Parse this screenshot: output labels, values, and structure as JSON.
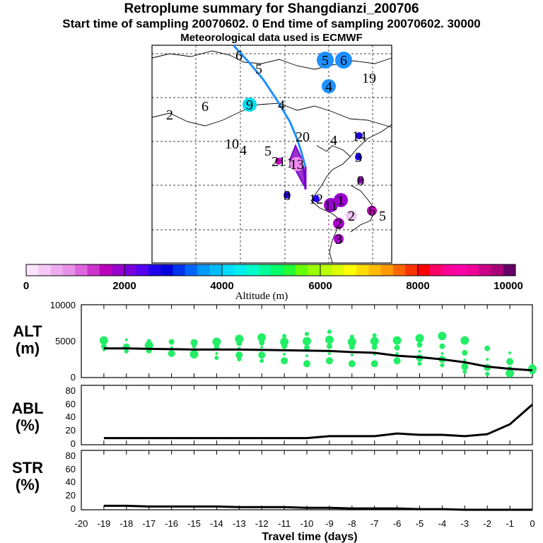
{
  "header": {
    "title": "Retroplume summary for Shangdianzi_200706",
    "sampling": "Start time of sampling 20070602.    0     End time of sampling 20070602. 30000",
    "met": "Meteorological data used is ECMWF"
  },
  "colorbar": {
    "label": "Altitude (m)",
    "ticks": [
      "0",
      "2000",
      "4000",
      "6000",
      "8000",
      "10000"
    ],
    "colors": [
      "#fbe4fb",
      "#f5c8f5",
      "#eeaaee",
      "#e890e8",
      "#dd66dd",
      "#cc33cc",
      "#bb00bb",
      "#9900cc",
      "#7700dd",
      "#5500ee",
      "#2200ee",
      "#0000dd",
      "#0033ee",
      "#0066ff",
      "#0099ff",
      "#00bbff",
      "#00ddff",
      "#00eeee",
      "#00ffcc",
      "#00ff99",
      "#00ff66",
      "#22ff33",
      "#66ff00",
      "#99ff00",
      "#bbff00",
      "#ddff00",
      "#ffff00",
      "#ffdd00",
      "#ffbb00",
      "#ff9900",
      "#ff6600",
      "#ff3300",
      "#ff0000",
      "#ff0066",
      "#ff0099",
      "#ff00aa",
      "#ee0099",
      "#cc0088",
      "#aa0077",
      "#660066"
    ]
  },
  "map": {
    "labels": [
      {
        "text": "6",
        "lon_deg": 0,
        "color": "#1e90ff"
      },
      {
        "text": "5",
        "color": "#1e90ff"
      },
      {
        "text": "5",
        "color": "#1e90ff"
      },
      {
        "text": "6",
        "color": "#1e90ff"
      },
      {
        "text": "4",
        "color": "#1e90ff"
      },
      {
        "text": "19",
        "color": "#00ddff"
      },
      {
        "text": "2",
        "color": "#00ddcc"
      },
      {
        "text": "6",
        "color": "#00ddcc"
      },
      {
        "text": "9",
        "color": "#00ddee"
      },
      {
        "text": "4",
        "color": "#1e90ff"
      },
      {
        "text": "10",
        "color": "#1e90ff"
      },
      {
        "text": "4",
        "color": "#1e90ff"
      },
      {
        "text": "5",
        "color": "#1e90ff"
      },
      {
        "text": "20",
        "color": "#aa00cc"
      },
      {
        "text": "14",
        "color": "#2200ee"
      },
      {
        "text": "4",
        "color": "#9900cc"
      },
      {
        "text": "3",
        "color": "#2200ee"
      },
      {
        "text": "21",
        "color": "#bb00bb"
      },
      {
        "text": "1",
        "color": "#aa00cc"
      },
      {
        "text": "13",
        "color": "#ee88ee"
      },
      {
        "text": "8",
        "color": "#9900cc"
      },
      {
        "text": "8",
        "color": "#2200ee"
      },
      {
        "text": "12",
        "color": "#2200ee"
      },
      {
        "text": "11",
        "color": "#9900cc"
      },
      {
        "text": "1",
        "color": "#9900cc"
      },
      {
        "text": "6",
        "color": "#bb00bb"
      },
      {
        "text": "5",
        "color": "#cc33cc"
      },
      {
        "text": "2",
        "color": "#f0c8f0"
      },
      {
        "text": "2",
        "color": "#aa00cc"
      },
      {
        "text": "3",
        "color": "#aa00cc"
      }
    ]
  },
  "panels": {
    "alt": {
      "label1": "ALT",
      "label2": "(m)",
      "yticks": [
        "10000",
        "5000",
        "0"
      ]
    },
    "abl": {
      "label1": "ABL",
      "label2": "(%)",
      "yticks": [
        "80",
        "60",
        "40",
        "20",
        "0"
      ]
    },
    "str": {
      "label1": "STR",
      "label2": "(%)",
      "yticks": [
        "80",
        "60",
        "40",
        "20",
        "0"
      ]
    }
  },
  "xaxis": {
    "title": "Travel time (days)",
    "ticks": [
      "-20",
      "-19",
      "-18",
      "-17",
      "-16",
      "-15",
      "-14",
      "-13",
      "-12",
      "-11",
      "-10",
      "-9",
      "-8",
      "-7",
      "-6",
      "-5",
      "-4",
      "-3",
      "-2",
      "-1",
      "0"
    ]
  },
  "chart_data": [
    {
      "type": "line",
      "title": "ALT (m)",
      "xlabel": "Travel time (days)",
      "ylabel": "Altitude (m)",
      "xlim": [
        -20,
        0
      ],
      "ylim": [
        0,
        10000
      ],
      "series": [
        {
          "name": "mean altitude",
          "x": [
            -19,
            -18,
            -17,
            -16,
            -15,
            -14,
            -13,
            -12,
            -11,
            -10,
            -9,
            -8,
            -7,
            -6,
            -5,
            -4,
            -3,
            -2,
            -1,
            0
          ],
          "values": [
            4000,
            4000,
            3950,
            3900,
            3850,
            3850,
            3850,
            3800,
            3750,
            3700,
            3650,
            3500,
            3400,
            3000,
            2800,
            2500,
            2100,
            1500,
            1200,
            1000
          ]
        },
        {
          "name": "cluster altitudes",
          "points": [
            [
              -19,
              3800
            ],
            [
              -19,
              4300
            ],
            [
              -19,
              5100
            ],
            [
              -18,
              3600
            ],
            [
              -18,
              4200
            ],
            [
              -18,
              5200
            ],
            [
              -17,
              3700
            ],
            [
              -17,
              4400
            ],
            [
              -17,
              5000
            ],
            [
              -16,
              3300
            ],
            [
              -16,
              4100
            ],
            [
              -16,
              4900
            ],
            [
              -15,
              3200
            ],
            [
              -15,
              4300
            ],
            [
              -15,
              4800
            ],
            [
              -14,
              3300
            ],
            [
              -14,
              4100
            ],
            [
              -14,
              4900
            ],
            [
              -14,
              2700
            ],
            [
              -13,
              3100
            ],
            [
              -13,
              4000
            ],
            [
              -13,
              4700
            ],
            [
              -13,
              5300
            ],
            [
              -13,
              2500
            ],
            [
              -12,
              3100
            ],
            [
              -12,
              4200
            ],
            [
              -12,
              4800
            ],
            [
              -12,
              5500
            ],
            [
              -12,
              2300
            ],
            [
              -11,
              2300
            ],
            [
              -11,
              3200
            ],
            [
              -11,
              4300
            ],
            [
              -11,
              4900
            ],
            [
              -11,
              5700
            ],
            [
              -10,
              1900
            ],
            [
              -10,
              3000
            ],
            [
              -10,
              4100
            ],
            [
              -10,
              5000
            ],
            [
              -10,
              6000
            ],
            [
              -9,
              2300
            ],
            [
              -9,
              3300
            ],
            [
              -9,
              4300
            ],
            [
              -9,
              5200
            ],
            [
              -9,
              6300
            ],
            [
              -8,
              1900
            ],
            [
              -8,
              3100
            ],
            [
              -8,
              4200
            ],
            [
              -8,
              4900
            ],
            [
              -8,
              5600
            ],
            [
              -7,
              1900
            ],
            [
              -7,
              3200
            ],
            [
              -7,
              4200
            ],
            [
              -7,
              5000
            ],
            [
              -7,
              5800
            ],
            [
              -6,
              2300
            ],
            [
              -6,
              3300
            ],
            [
              -6,
              4100
            ],
            [
              -6,
              5100
            ],
            [
              -5,
              1900
            ],
            [
              -5,
              2700
            ],
            [
              -5,
              3600
            ],
            [
              -5,
              4500
            ],
            [
              -5,
              5400
            ],
            [
              -4,
              1700
            ],
            [
              -4,
              2500
            ],
            [
              -4,
              3300
            ],
            [
              -4,
              4300
            ],
            [
              -4,
              5700
            ],
            [
              -3,
              800
            ],
            [
              -3,
              1500
            ],
            [
              -3,
              2400
            ],
            [
              -3,
              3400
            ],
            [
              -3,
              5100
            ],
            [
              -2,
              500
            ],
            [
              -2,
              1400
            ],
            [
              -2,
              2500
            ],
            [
              -2,
              4000
            ],
            [
              -1,
              600
            ],
            [
              -1,
              1300
            ],
            [
              -1,
              2200
            ],
            [
              -1,
              3400
            ],
            [
              0,
              800
            ],
            [
              0,
              1200
            ],
            [
              0,
              1600
            ]
          ]
        }
      ]
    },
    {
      "type": "line",
      "title": "ABL (%)",
      "xlim": [
        -20,
        0
      ],
      "ylim": [
        0,
        90
      ],
      "series": [
        {
          "name": "ABL fraction",
          "x": [
            -19,
            -18,
            -17,
            -16,
            -15,
            -14,
            -13,
            -12,
            -11,
            -10,
            -9,
            -8,
            -7,
            -6,
            -5,
            -4,
            -3,
            -2,
            -1,
            0
          ],
          "values": [
            10,
            10,
            10,
            10,
            10,
            10,
            10,
            10,
            10,
            10,
            13,
            13,
            13,
            17,
            15,
            15,
            13,
            16,
            31,
            61
          ]
        }
      ]
    },
    {
      "type": "line",
      "title": "STR (%)",
      "xlim": [
        -20,
        0
      ],
      "ylim": [
        0,
        90
      ],
      "series": [
        {
          "name": "STR fraction",
          "x": [
            -19,
            -18,
            -17,
            -16,
            -15,
            -14,
            -13,
            -12,
            -11,
            -10,
            -9,
            -8,
            -7,
            -6,
            -5,
            -4,
            -3,
            -2,
            -1,
            0
          ],
          "values": [
            6,
            6,
            5,
            5,
            5,
            5,
            4,
            4,
            4,
            3,
            3,
            2,
            2,
            2,
            1,
            1,
            0,
            0,
            0,
            0
          ]
        }
      ]
    }
  ]
}
